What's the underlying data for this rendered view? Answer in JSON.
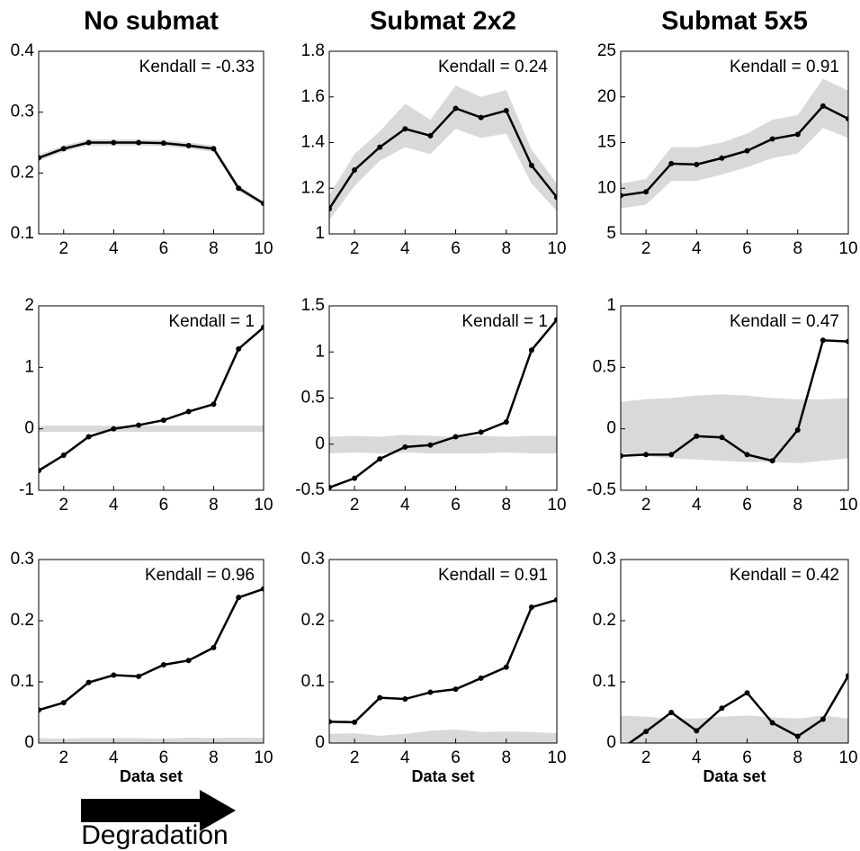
{
  "chart_data": [
    {
      "type": "line",
      "title": "No submat",
      "annotation": "Kendall = -0.33",
      "x": [
        1,
        2,
        3,
        4,
        5,
        6,
        7,
        8,
        9,
        10
      ],
      "series": [
        {
          "color": "#000000",
          "values": [
            0.225,
            0.24,
            0.25,
            0.25,
            0.25,
            0.249,
            0.245,
            0.24,
            0.175,
            0.15
          ]
        }
      ],
      "band": {
        "color": "#d9d9d9",
        "upper": [
          0.23,
          0.245,
          0.255,
          0.255,
          0.255,
          0.254,
          0.25,
          0.245,
          0.18,
          0.153
        ],
        "lower": [
          0.22,
          0.235,
          0.245,
          0.245,
          0.245,
          0.244,
          0.24,
          0.235,
          0.17,
          0.147
        ]
      },
      "xlim": [
        1,
        10
      ],
      "xticks": [
        2,
        4,
        6,
        8,
        10
      ],
      "ylim": [
        0.1,
        0.4
      ],
      "yticks": [
        0.1,
        0.2,
        0.3,
        0.4
      ]
    },
    {
      "type": "line",
      "title": "Submat 2x2",
      "annotation": "Kendall = 0.24",
      "x": [
        1,
        2,
        3,
        4,
        5,
        6,
        7,
        8,
        9,
        10
      ],
      "series": [
        {
          "color": "#000000",
          "values": [
            1.11,
            1.28,
            1.38,
            1.46,
            1.43,
            1.55,
            1.51,
            1.54,
            1.3,
            1.16
          ]
        }
      ],
      "band": {
        "color": "#d9d9d9",
        "upper": [
          1.17,
          1.35,
          1.45,
          1.57,
          1.5,
          1.65,
          1.6,
          1.63,
          1.37,
          1.22
        ],
        "lower": [
          1.06,
          1.21,
          1.32,
          1.38,
          1.35,
          1.46,
          1.42,
          1.44,
          1.22,
          1.1
        ]
      },
      "xlim": [
        1,
        10
      ],
      "xticks": [
        2,
        4,
        6,
        8,
        10
      ],
      "ylim": [
        1,
        1.8
      ],
      "yticks": [
        1,
        1.2,
        1.4,
        1.6,
        1.8
      ]
    },
    {
      "type": "line",
      "title": "Submat 5x5",
      "annotation": "Kendall = 0.91",
      "x": [
        1,
        2,
        3,
        4,
        5,
        6,
        7,
        8,
        9,
        10
      ],
      "series": [
        {
          "color": "#000000",
          "values": [
            9.2,
            9.6,
            12.7,
            12.6,
            13.3,
            14.1,
            15.4,
            15.9,
            19.0,
            17.6
          ]
        }
      ],
      "band": {
        "color": "#d9d9d9",
        "upper": [
          10.5,
          11,
          14.5,
          14.5,
          15,
          16,
          17.5,
          18,
          22,
          20.7
        ],
        "lower": [
          7.8,
          8.2,
          10.8,
          10.8,
          11.5,
          12.3,
          13.3,
          13.8,
          16.6,
          15.5
        ]
      },
      "xlim": [
        1,
        10
      ],
      "xticks": [
        2,
        4,
        6,
        8,
        10
      ],
      "ylim": [
        5,
        25
      ],
      "yticks": [
        5,
        10,
        15,
        20,
        25
      ]
    },
    {
      "type": "line",
      "annotation": "Kendall = 1",
      "x": [
        1,
        2,
        3,
        4,
        5,
        6,
        7,
        8,
        9,
        10
      ],
      "series": [
        {
          "color": "#000000",
          "values": [
            -0.68,
            -0.43,
            -0.13,
            0,
            0.06,
            0.14,
            0.28,
            0.4,
            1.3,
            1.65
          ]
        }
      ],
      "band": {
        "color": "#d9d9d9",
        "upper": [
          0.05,
          0.05,
          0.05,
          0.05,
          0.05,
          0.05,
          0.05,
          0.05,
          0.05,
          0.05
        ],
        "lower": [
          -0.05,
          -0.05,
          -0.05,
          -0.05,
          -0.05,
          -0.05,
          -0.05,
          -0.05,
          -0.05,
          -0.05
        ]
      },
      "xlim": [
        1,
        10
      ],
      "xticks": [
        2,
        4,
        6,
        8,
        10
      ],
      "ylim": [
        -1,
        2
      ],
      "yticks": [
        -1,
        0,
        1,
        2
      ]
    },
    {
      "type": "line",
      "annotation": "Kendall = 1",
      "x": [
        1,
        2,
        3,
        4,
        5,
        6,
        7,
        8,
        9,
        10
      ],
      "series": [
        {
          "color": "#000000",
          "values": [
            -0.47,
            -0.37,
            -0.16,
            -0.03,
            -0.01,
            0.08,
            0.13,
            0.24,
            1.02,
            1.35
          ]
        }
      ],
      "band": {
        "color": "#d9d9d9",
        "upper": [
          0.08,
          0.09,
          0.08,
          0.1,
          0.09,
          0.08,
          0.09,
          0.08,
          0.09,
          0.09
        ],
        "lower": [
          -0.1,
          -0.09,
          -0.1,
          -0.09,
          -0.1,
          -0.1,
          -0.1,
          -0.09,
          -0.1,
          -0.1
        ]
      },
      "xlim": [
        1,
        10
      ],
      "xticks": [
        2,
        4,
        6,
        8,
        10
      ],
      "ylim": [
        -0.5,
        1.5
      ],
      "yticks": [
        -0.5,
        0,
        0.5,
        1,
        1.5
      ]
    },
    {
      "type": "line",
      "annotation": "Kendall = 0.47",
      "x": [
        1,
        2,
        3,
        4,
        5,
        6,
        7,
        8,
        9,
        10
      ],
      "series": [
        {
          "color": "#000000",
          "values": [
            -0.22,
            -0.21,
            -0.21,
            -0.06,
            -0.07,
            -0.21,
            -0.26,
            -0.01,
            0.72,
            0.71
          ]
        }
      ],
      "band": {
        "color": "#d9d9d9",
        "upper": [
          0.22,
          0.24,
          0.25,
          0.27,
          0.28,
          0.27,
          0.25,
          0.24,
          0.24,
          0.25
        ],
        "lower": [
          -0.2,
          -0.22,
          -0.24,
          -0.25,
          -0.26,
          -0.27,
          -0.27,
          -0.28,
          -0.26,
          -0.24
        ]
      },
      "xlim": [
        1,
        10
      ],
      "xticks": [
        2,
        4,
        6,
        8,
        10
      ],
      "ylim": [
        -0.5,
        1
      ],
      "yticks": [
        -0.5,
        0,
        0.5,
        1
      ]
    },
    {
      "type": "line",
      "annotation": "Kendall = 0.96",
      "xlabel": "Data set",
      "x": [
        1,
        2,
        3,
        4,
        5,
        6,
        7,
        8,
        9,
        10
      ],
      "series": [
        {
          "color": "#000000",
          "values": [
            0.054,
            0.066,
            0.099,
            0.111,
            0.109,
            0.128,
            0.135,
            0.156,
            0.238,
            0.252
          ]
        }
      ],
      "band": {
        "color": "#d9d9d9",
        "upper": [
          0.008,
          0.007,
          0.008,
          0.008,
          0.008,
          0.007,
          0.009,
          0.008,
          0.009,
          0.008
        ],
        "lower": [
          0,
          0,
          0,
          0,
          0,
          0,
          0,
          0,
          0,
          0
        ]
      },
      "xlim": [
        1,
        10
      ],
      "xticks": [
        2,
        4,
        6,
        8,
        10
      ],
      "ylim": [
        0,
        0.3
      ],
      "yticks": [
        0,
        0.1,
        0.2,
        0.3
      ]
    },
    {
      "type": "line",
      "annotation": "Kendall = 0.91",
      "xlabel": "Data set",
      "x": [
        1,
        2,
        3,
        4,
        5,
        6,
        7,
        8,
        9,
        10
      ],
      "series": [
        {
          "color": "#000000",
          "values": [
            0.035,
            0.034,
            0.074,
            0.072,
            0.083,
            0.088,
            0.106,
            0.124,
            0.222,
            0.234
          ]
        }
      ],
      "band": {
        "color": "#d9d9d9",
        "upper": [
          0.015,
          0.016,
          0.012,
          0.015,
          0.02,
          0.022,
          0.018,
          0.019,
          0.018,
          0.016
        ],
        "lower": [
          0,
          0,
          0,
          0,
          0,
          0,
          0,
          0,
          0,
          0
        ]
      },
      "xlim": [
        1,
        10
      ],
      "xticks": [
        2,
        4,
        6,
        8,
        10
      ],
      "ylim": [
        0,
        0.3
      ],
      "yticks": [
        0,
        0.1,
        0.2,
        0.3
      ]
    },
    {
      "type": "line",
      "annotation": "Kendall = 0.42",
      "xlabel": "Data set",
      "x": [
        1,
        2,
        3,
        4,
        5,
        6,
        7,
        8,
        9,
        10
      ],
      "series": [
        {
          "color": "#000000",
          "values": [
            -0.01,
            0.019,
            0.05,
            0.02,
            0.057,
            0.082,
            0.033,
            0.011,
            0.039,
            0.11
          ]
        }
      ],
      "band": {
        "color": "#d9d9d9",
        "upper": [
          0.045,
          0.043,
          0.04,
          0.04,
          0.043,
          0.045,
          0.042,
          0.04,
          0.045,
          0.04
        ],
        "lower": [
          0,
          0,
          0,
          0,
          0,
          0,
          0,
          0,
          0,
          0
        ]
      },
      "xlim": [
        1,
        10
      ],
      "xticks": [
        2,
        4,
        6,
        8,
        10
      ],
      "ylim": [
        0,
        0.3
      ],
      "yticks": [
        0,
        0.1,
        0.2,
        0.3
      ]
    }
  ],
  "footer": {
    "label": "Degradation"
  }
}
